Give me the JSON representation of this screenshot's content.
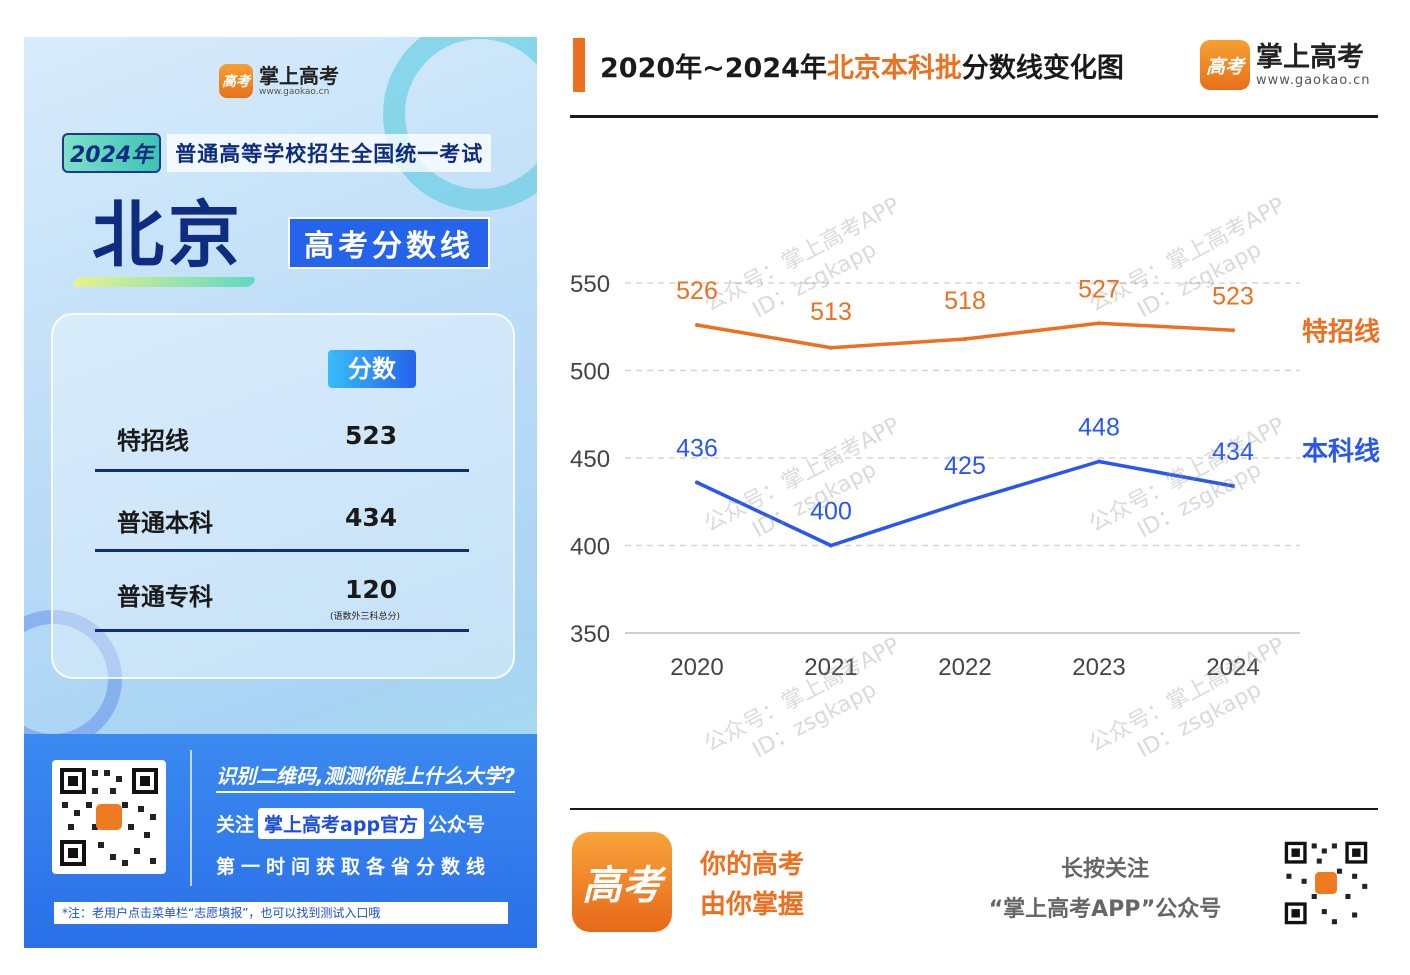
{
  "left": {
    "brand_name": "掌上高考",
    "brand_url": "www.gaokao.cn",
    "logo_text": "高考",
    "year_badge": "2024年",
    "exam_name": "普通高等学校招生全国统一考试",
    "city": "北京",
    "score_title": "高考分数线",
    "column_header": "分数",
    "rows": [
      {
        "label": "特招线",
        "value": "523",
        "note": ""
      },
      {
        "label": "普通本科",
        "value": "434",
        "note": ""
      },
      {
        "label": "普通专科",
        "value": "120",
        "note": "(语数外三科总分)"
      }
    ],
    "band": {
      "question": "识别二维码,测测你能上什么大学?",
      "follow_prefix": "关注",
      "follow_highlight": "掌上高考app官方",
      "follow_suffix": "公众号",
      "tip": "第一时间获取各省分数线",
      "note": "*注：老用户点击菜单栏“志愿填报”，也可以找到测试入口哦"
    }
  },
  "right": {
    "title_prefix": "2020年~2024年",
    "title_highlight": "北京本科批",
    "title_suffix": "分数线变化图",
    "brand_name": "掌上高考",
    "brand_url": "www.gaokao.cn",
    "logo_text": "高考",
    "watermark_line1": "公众号：掌上高考APP",
    "watermark_line2": "ID：zsgkapp",
    "slogan_line1": "你的高考",
    "slogan_line2": "由你掌握",
    "follow_line1": "长按关注",
    "follow_line2": "“掌上高考APP”公众号"
  },
  "colors": {
    "orange": "#ed7020",
    "blue": "#2a56f0",
    "navy": "#0f2d80"
  },
  "chart_data": {
    "type": "line",
    "title": "2020年~2024年北京本科批分数线变化图",
    "categories": [
      "2020",
      "2021",
      "2022",
      "2023",
      "2024"
    ],
    "ylim": [
      350,
      550
    ],
    "yticks": [
      350,
      400,
      450,
      500,
      550
    ],
    "grid": true,
    "series": [
      {
        "name": "特招线",
        "values": [
          526,
          513,
          518,
          527,
          523
        ],
        "color": "#ed7020"
      },
      {
        "name": "本科线",
        "values": [
          436,
          400,
          425,
          448,
          434
        ],
        "color": "#2a56f0"
      }
    ]
  }
}
